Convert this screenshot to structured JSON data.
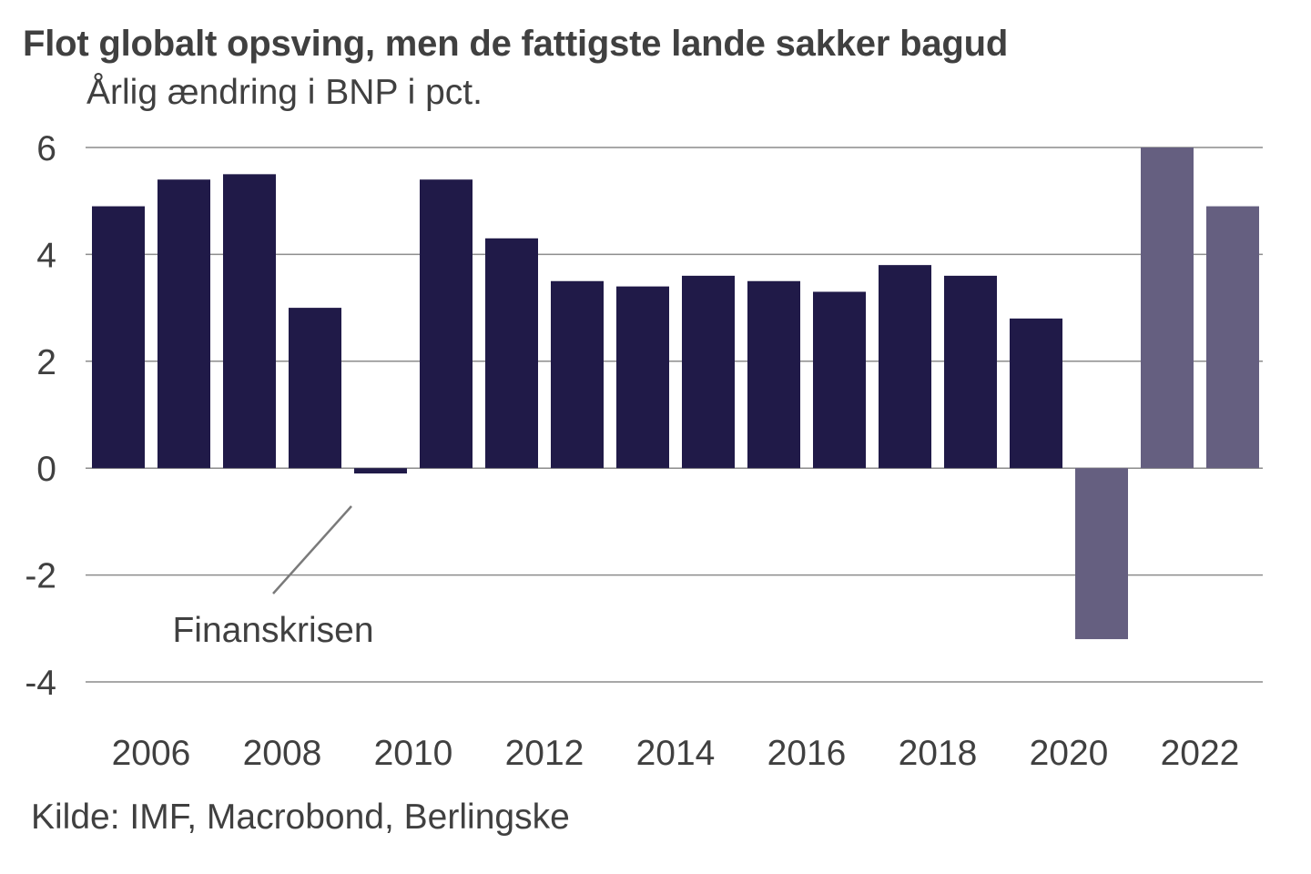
{
  "chart_data": {
    "type": "bar",
    "title": "Flot globalt opsving, men de fattigste lande sakker bagud",
    "subtitle": "Årlig ændring i BNP i pct.",
    "xlabel": "",
    "ylabel": "Årlig ændring i BNP i pct.",
    "categories": [
      "2005",
      "2006",
      "2007",
      "2008",
      "2009",
      "2010",
      "2011",
      "2012",
      "2013",
      "2014",
      "2015",
      "2016",
      "2017",
      "2018",
      "2019",
      "2020",
      "2021",
      "2022"
    ],
    "values": [
      4.9,
      5.4,
      5.5,
      3.0,
      -0.1,
      5.4,
      4.3,
      3.5,
      3.4,
      3.6,
      3.5,
      3.3,
      3.8,
      3.6,
      2.8,
      -3.2,
      6.0,
      4.9
    ],
    "bar_status": [
      "actual",
      "actual",
      "actual",
      "actual",
      "actual",
      "actual",
      "actual",
      "actual",
      "actual",
      "actual",
      "actual",
      "actual",
      "actual",
      "actual",
      "actual",
      "highlight",
      "highlight",
      "highlight"
    ],
    "colors": {
      "actual": "#201a48",
      "highlight": "#655f80",
      "grid": "#8c8c8c",
      "text": "#404040"
    },
    "ylim": [
      -4,
      6
    ],
    "yticks": [
      -4,
      -2,
      0,
      2,
      4,
      6
    ],
    "ytick_labels": [
      "-4",
      "-2",
      "0",
      "2",
      "4",
      "6"
    ],
    "xtick_labels": [
      "2006",
      "2008",
      "2010",
      "2012",
      "2014",
      "2016",
      "2018",
      "2020",
      "2022"
    ],
    "grid": true,
    "legend": null,
    "annotations": [
      {
        "text": "Finanskrisen",
        "points_to": "2009"
      }
    ],
    "source": "Kilde: IMF, Macrobond, Berlingske"
  }
}
